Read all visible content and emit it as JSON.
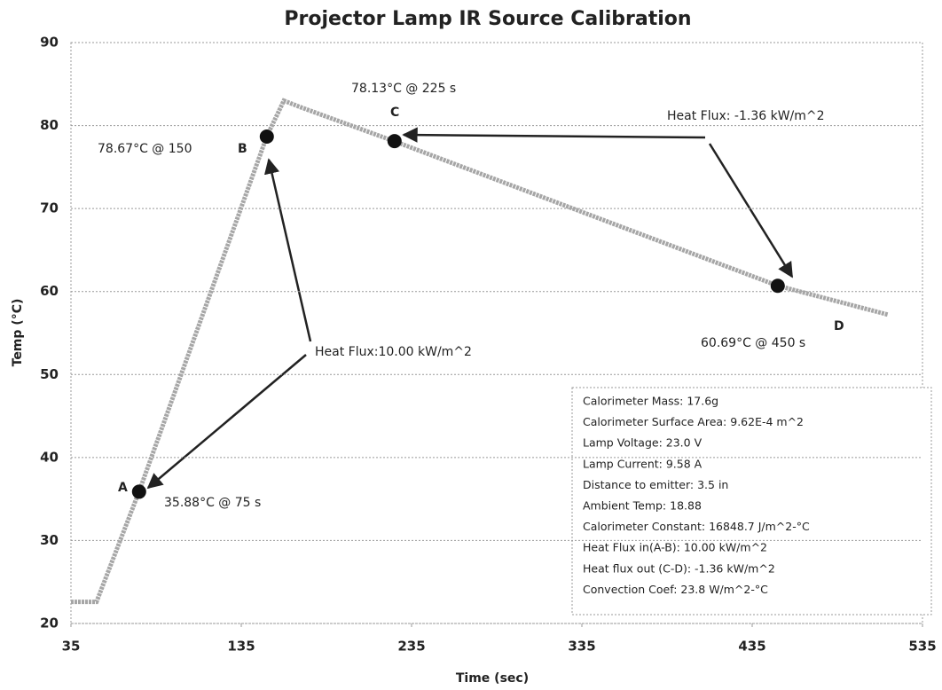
{
  "chart_data": {
    "type": "line",
    "title": "Projector Lamp IR Source Calibration",
    "x_label": "Time (sec)",
    "y_label": "Temp (°C)",
    "x": [
      35,
      50,
      75,
      150,
      160,
      170,
      225,
      450,
      515
    ],
    "series": [
      {
        "color": "#a6a6a6",
        "values": [
          22.6,
          22.6,
          35.9,
          78.7,
          83,
          82.2,
          78.1,
          60.7,
          57.2
        ]
      }
    ],
    "points": [
      {
        "label": "A",
        "x": 75,
        "y": 35.88,
        "text": "35.88°C @ 75 s"
      },
      {
        "label": "B",
        "x": 150,
        "y": 78.67,
        "text": "78.67°C @ 150"
      },
      {
        "label": "C",
        "x": 225,
        "y": 78.13,
        "text": "78.13°C @ 225 s"
      },
      {
        "label": "D",
        "x": 450,
        "y": 60.69,
        "text": "60.69°C @ 450 s"
      }
    ],
    "annotations": [
      "Heat Flux:10.00 kW/m^2",
      "Heat Flux: -1.36 kW/m^2"
    ],
    "info_box": [
      "Calorimeter Mass: 17.6g",
      "Calorimeter Surface Area: 9.62E-4 m^2",
      "Lamp Voltage: 23.0 V",
      "Lamp Current: 9.58 A",
      "Distance  to emitter: 3.5 in",
      "Ambient Temp: 18.88",
      "Calorimeter Constant:  16848.7 J/m^2-°C",
      "Heat Flux in(A-B): 10.00 kW/m^2",
      "Heat flux out (C-D): -1.36 kW/m^2",
      "Convection Coef: 23.8 W/m^2-°C"
    ],
    "xlim": [
      35,
      535
    ],
    "xticks": [
      35,
      135,
      235,
      335,
      435,
      535
    ],
    "ylim": [
      20,
      90
    ],
    "yticks": [
      20,
      30,
      40,
      50,
      60,
      70,
      80,
      90
    ],
    "grid": true
  }
}
